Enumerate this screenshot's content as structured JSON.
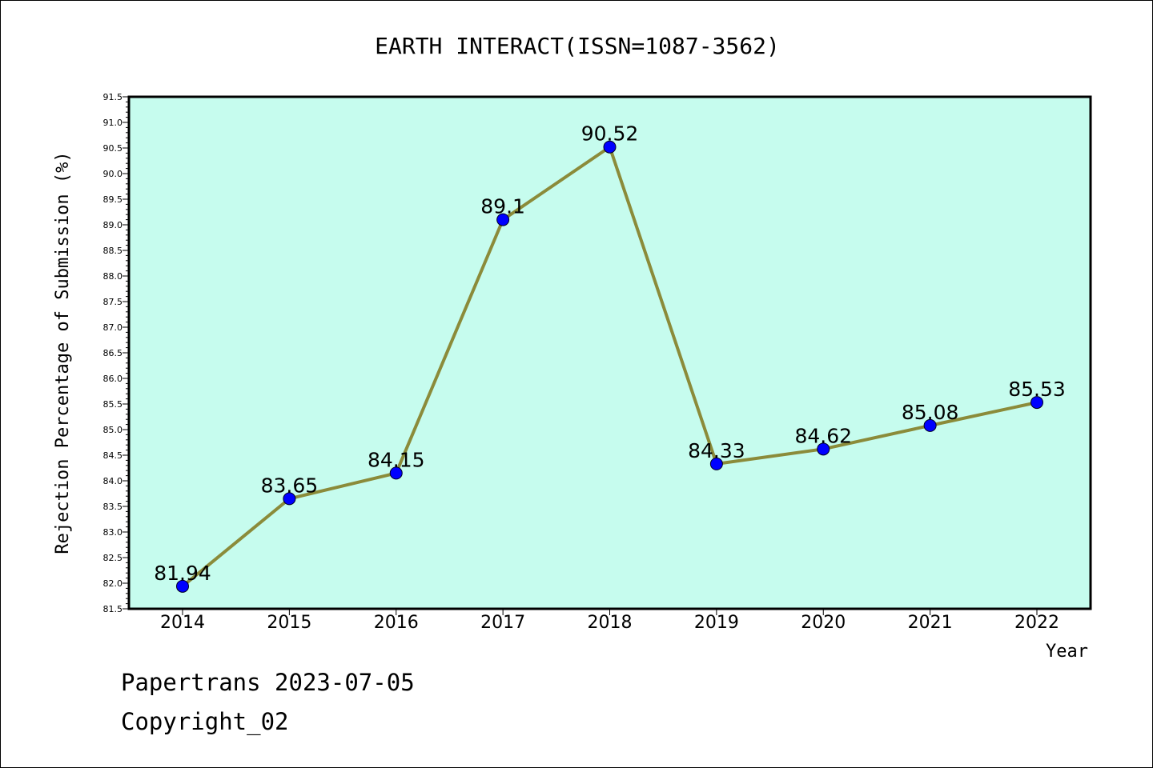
{
  "chart_data": {
    "type": "line",
    "title": "EARTH INTERACT(ISSN=1087-3562)",
    "xlabel": "Year",
    "ylabel": "Rejection Percentage of Submission (%)",
    "categories": [
      "2014",
      "2015",
      "2016",
      "2017",
      "2018",
      "2019",
      "2020",
      "2021",
      "2022"
    ],
    "series": [
      {
        "values": [
          81.94,
          83.65,
          84.15,
          89.1,
          90.52,
          84.33,
          84.62,
          85.08,
          85.53
        ],
        "labels": [
          "81.94",
          "83.65",
          "84.15",
          "89.1",
          "90.52",
          "84.33",
          "84.62",
          "85.08",
          "85.53"
        ]
      }
    ],
    "ylim": [
      81.5,
      91.5
    ],
    "yticks": [
      "81.5",
      "82.0",
      "82.5",
      "83.0",
      "83.5",
      "84.0",
      "84.5",
      "85.0",
      "85.5",
      "86.0",
      "86.5",
      "87.0",
      "87.5",
      "88.0",
      "88.5",
      "89.0",
      "89.5",
      "90.0",
      "90.5",
      "91.0",
      "91.5"
    ],
    "grid": false,
    "colors": {
      "plot_background": "#c6fcee",
      "line": "#8b8b3a",
      "marker": "#0000ff"
    }
  },
  "footer": {
    "line1": "Papertrans 2023-07-05",
    "line2": "Copyright_02"
  }
}
